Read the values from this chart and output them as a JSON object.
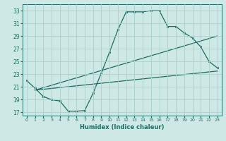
{
  "xlabel": "Humidex (Indice chaleur)",
  "xlim": [
    -0.5,
    23.5
  ],
  "ylim": [
    16.5,
    34.0
  ],
  "xticks": [
    0,
    1,
    2,
    3,
    4,
    5,
    6,
    7,
    8,
    9,
    10,
    11,
    12,
    13,
    14,
    15,
    16,
    17,
    18,
    19,
    20,
    21,
    22,
    23
  ],
  "yticks": [
    17,
    19,
    21,
    23,
    25,
    27,
    29,
    31,
    33
  ],
  "background_color": "#cde8e5",
  "grid_color": "#a8d0cc",
  "line_color": "#1e6b62",
  "curve_x": [
    0,
    1,
    2,
    3,
    4,
    5,
    6,
    7,
    8,
    9,
    10,
    11,
    12,
    13,
    14,
    15,
    16,
    17,
    18,
    19,
    20,
    21,
    22,
    23
  ],
  "curve_y": [
    22.0,
    20.8,
    19.5,
    19.0,
    18.8,
    17.2,
    17.2,
    17.3,
    20.0,
    23.2,
    26.5,
    30.0,
    32.8,
    32.8,
    32.8,
    33.0,
    33.0,
    30.5,
    30.5,
    29.5,
    28.7,
    27.3,
    25.0,
    24.0
  ],
  "straight_line1_x": [
    1,
    23
  ],
  "straight_line1_y": [
    20.5,
    29.0
  ],
  "straight_line2_x": [
    1,
    23
  ],
  "straight_line2_y": [
    20.5,
    23.5
  ],
  "marker_style": "s",
  "marker_size": 1.8,
  "line_width": 0.9
}
